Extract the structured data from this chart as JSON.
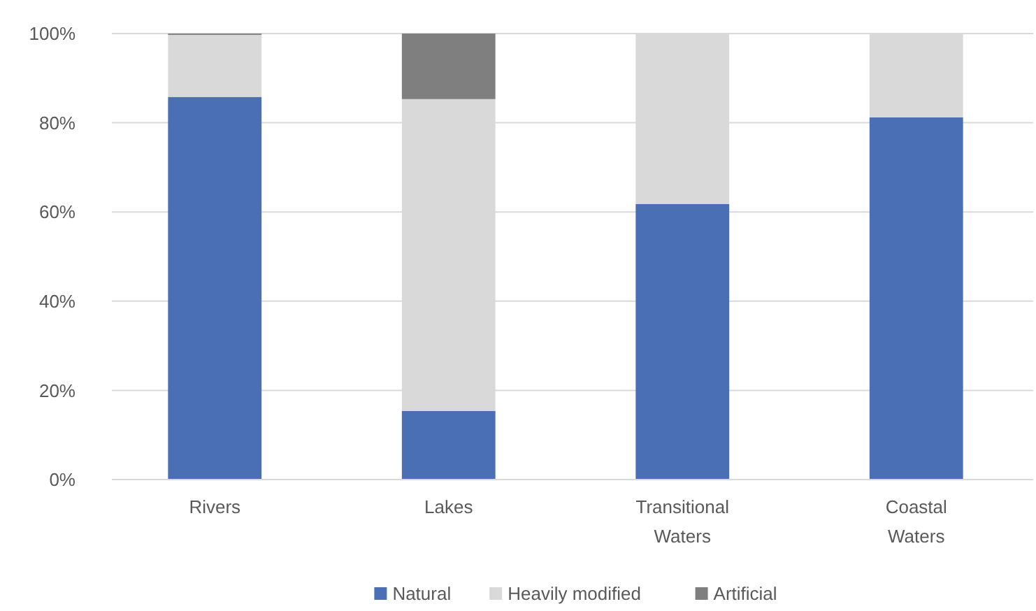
{
  "chart_data": {
    "type": "bar",
    "stacked": true,
    "categories": [
      "Rivers",
      "Lakes",
      "Transitional Waters",
      "Coastal Waters"
    ],
    "series": [
      {
        "name": "Natural",
        "color": "#4a6fb5",
        "values": [
          85.8,
          15.4,
          61.8,
          81.2
        ]
      },
      {
        "name": "Heavily modified",
        "color": "#d9d9d9",
        "values": [
          13.9,
          69.9,
          38.2,
          18.8
        ]
      },
      {
        "name": "Artificial",
        "color": "#7f7f7f",
        "values": [
          0.3,
          14.7,
          0,
          0
        ]
      }
    ],
    "ylim": [
      0,
      100
    ],
    "yticks": [
      {
        "value": 0,
        "label": "0%"
      },
      {
        "value": 20,
        "label": "20%"
      },
      {
        "value": 40,
        "label": "40%"
      },
      {
        "value": 60,
        "label": "60%"
      },
      {
        "value": 80,
        "label": "80%"
      },
      {
        "value": 100,
        "label": "100%"
      }
    ],
    "grid": "y",
    "legend": "bottom"
  }
}
